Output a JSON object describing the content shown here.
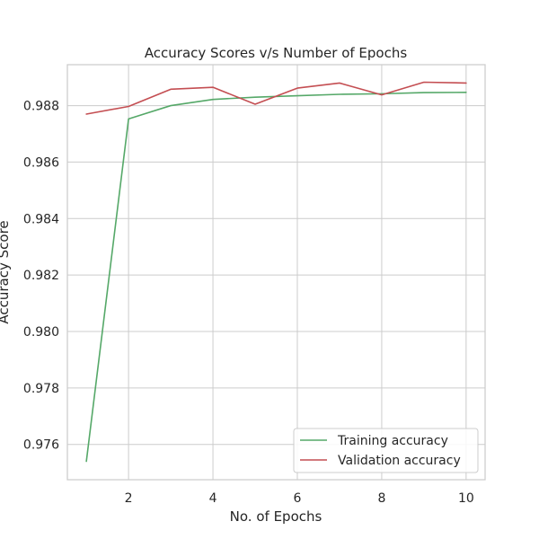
{
  "chart_data": {
    "type": "line",
    "title": "Accuracy Scores v/s Number of Epochs",
    "xlabel": "No. of Epochs",
    "ylabel": "Accuracy Score",
    "x": [
      1,
      2,
      3,
      4,
      5,
      6,
      7,
      8,
      9,
      10
    ],
    "xlim": [
      0.55,
      10.45
    ],
    "ylim": [
      0.97475,
      0.98945
    ],
    "xticks": [
      2,
      4,
      6,
      8,
      10
    ],
    "yticks": [
      0.976,
      0.978,
      0.98,
      0.982,
      0.984,
      0.986,
      0.988
    ],
    "xtick_labels": [
      "2",
      "4",
      "6",
      "8",
      "10"
    ],
    "ytick_labels": [
      "0.976",
      "0.978",
      "0.980",
      "0.982",
      "0.984",
      "0.986",
      "0.988"
    ],
    "grid": true,
    "legend_position": "lower-right",
    "series": [
      {
        "name": "Training accuracy",
        "color": "#55a868",
        "values": [
          0.9754,
          0.98753,
          0.988,
          0.98822,
          0.9883,
          0.98835,
          0.9884,
          0.98842,
          0.98846,
          0.98847
        ]
      },
      {
        "name": "Validation accuracy",
        "color": "#c44e52",
        "values": [
          0.9877,
          0.98797,
          0.98858,
          0.98865,
          0.98805,
          0.98862,
          0.9888,
          0.98838,
          0.98883,
          0.9888
        ]
      }
    ]
  }
}
